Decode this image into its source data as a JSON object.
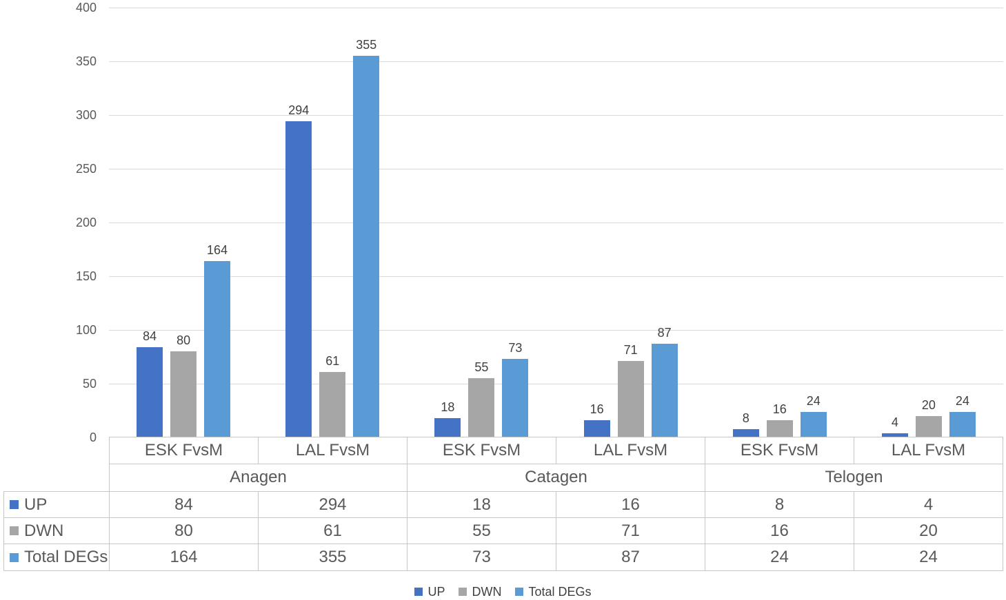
{
  "chart_data": {
    "type": "bar",
    "groups": [
      "Anagen",
      "Catagen",
      "Telogen"
    ],
    "subgroup_labels": [
      "ESK FvsM",
      "LAL FvsM"
    ],
    "categories": [
      "ESK FvsM",
      "LAL FvsM",
      "ESK FvsM",
      "LAL FvsM",
      "ESK FvsM",
      "LAL FvsM"
    ],
    "series": [
      {
        "name": "UP",
        "color": "#4472C4",
        "values": [
          84,
          294,
          18,
          16,
          8,
          4
        ]
      },
      {
        "name": "DWN",
        "color": "#A6A6A6",
        "values": [
          80,
          61,
          55,
          71,
          16,
          20
        ]
      },
      {
        "name": "Total DEGs",
        "color": "#5B9BD5",
        "values": [
          164,
          355,
          73,
          87,
          24,
          24
        ]
      }
    ],
    "y_axis": {
      "min": 0,
      "max": 400,
      "step": 50,
      "tick_labels": [
        "0",
        "50",
        "100",
        "150",
        "200",
        "250",
        "300",
        "350",
        "400"
      ]
    },
    "grid": true,
    "gridline_color": "#D9D9D9",
    "table_border_color": "#C6C6C6",
    "axis_text_color": "#595959",
    "data_label_color": "#404040",
    "legend_position": "bottom",
    "legend_labels": [
      "UP",
      "DWN",
      "Total DEGs"
    ],
    "data_table": true,
    "data_labels_shown": true
  }
}
